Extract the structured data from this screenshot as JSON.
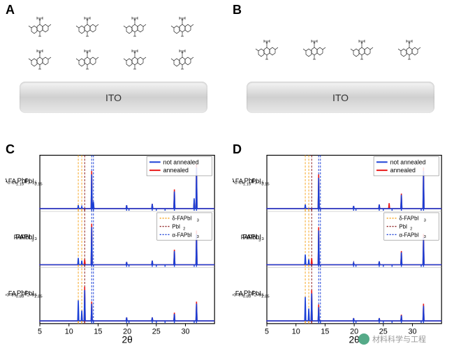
{
  "panels": {
    "A": {
      "label": "A",
      "ito_label": "ITO",
      "mol_rows": 2,
      "mol_cols": 4
    },
    "B": {
      "label": "B",
      "ito_label": "ITO",
      "mol_rows": 1,
      "mol_cols": 4
    },
    "C": {
      "label": "C"
    },
    "D": {
      "label": "D"
    }
  },
  "xrd": {
    "xlabel": "2θ",
    "xlim": [
      5,
      35
    ],
    "xticks": [
      5,
      10,
      15,
      20,
      25,
      30
    ],
    "line_colors": {
      "not_annealed": "#1a3fd6",
      "annealed": "#e81818"
    },
    "line_width": 1.6,
    "ref_lines": {
      "delta": {
        "color": "#f5a623",
        "label": "δ-FAPbI₃",
        "dash": "3,2",
        "positions": [
          11.6,
          12.2
        ]
      },
      "pbi2": {
        "color": "#8b1a1a",
        "label": "PbI₂",
        "dash": "3,2",
        "positions": [
          12.7
        ]
      },
      "alpha": {
        "color": "#1a3fd6",
        "label": "α-FAPbI₃",
        "dash": "3,2",
        "positions": [
          13.9,
          14.2
        ]
      }
    },
    "legend_series": {
      "not_annealed": "not annealed",
      "annealed": "annealed"
    },
    "samples": [
      "FA₁.₁₅PbI₃.₁₅",
      "FAPbI₃",
      "FA₀.₈₅PbI₂.₈₅"
    ],
    "C_data": {
      "FA115": {
        "na": [
          [
            5,
            0
          ],
          [
            11.6,
            5
          ],
          [
            12.2,
            3
          ],
          [
            13.9,
            50
          ],
          [
            14.2,
            10
          ],
          [
            19.9,
            5
          ],
          [
            24.3,
            7
          ],
          [
            28.1,
            25
          ],
          [
            31.5,
            15
          ],
          [
            31.9,
            60
          ]
        ],
        "an": [
          [
            5,
            0
          ],
          [
            13.9,
            55
          ],
          [
            14.2,
            8
          ],
          [
            19.9,
            5
          ],
          [
            24.3,
            7
          ],
          [
            28.1,
            28
          ],
          [
            31.5,
            12
          ],
          [
            31.9,
            65
          ]
        ]
      },
      "FA100": {
        "na": [
          [
            5,
            0
          ],
          [
            11.6,
            10
          ],
          [
            12.2,
            6
          ],
          [
            13.9,
            55
          ],
          [
            19.9,
            4
          ],
          [
            24.3,
            6
          ],
          [
            28.1,
            20
          ],
          [
            31.9,
            45
          ]
        ],
        "an": [
          [
            5,
            0
          ],
          [
            12.7,
            8
          ],
          [
            13.9,
            60
          ],
          [
            19.9,
            4
          ],
          [
            24.3,
            6
          ],
          [
            28.1,
            22
          ],
          [
            31.9,
            50
          ]
        ]
      },
      "FA085": {
        "na": [
          [
            5,
            0
          ],
          [
            11.6,
            30
          ],
          [
            12.2,
            15
          ],
          [
            12.7,
            45
          ],
          [
            13.9,
            25
          ],
          [
            19.9,
            5
          ],
          [
            24.3,
            5
          ],
          [
            28.1,
            10
          ],
          [
            31.9,
            25
          ]
        ],
        "an": [
          [
            5,
            0
          ],
          [
            12.7,
            50
          ],
          [
            13.9,
            28
          ],
          [
            19.9,
            5
          ],
          [
            24.3,
            5
          ],
          [
            28.1,
            12
          ],
          [
            31.9,
            28
          ]
        ]
      }
    },
    "D_data": {
      "FA115": {
        "na": [
          [
            5,
            0
          ],
          [
            11.6,
            6
          ],
          [
            13.9,
            45
          ],
          [
            19.9,
            4
          ],
          [
            24.3,
            6
          ],
          [
            28.1,
            20
          ],
          [
            31.9,
            55
          ]
        ],
        "an": [
          [
            5,
            0
          ],
          [
            13.9,
            50
          ],
          [
            19.9,
            4
          ],
          [
            24.3,
            6
          ],
          [
            26.0,
            8
          ],
          [
            28.1,
            22
          ],
          [
            31.9,
            60
          ]
        ]
      },
      "FA100": {
        "na": [
          [
            5,
            0
          ],
          [
            11.6,
            15
          ],
          [
            12.2,
            8
          ],
          [
            13.9,
            50
          ],
          [
            19.9,
            3
          ],
          [
            24.3,
            5
          ],
          [
            28.1,
            18
          ],
          [
            31.9,
            40
          ]
        ],
        "an": [
          [
            5,
            0
          ],
          [
            12.7,
            10
          ],
          [
            13.9,
            55
          ],
          [
            19.9,
            3
          ],
          [
            24.3,
            5
          ],
          [
            28.1,
            20
          ],
          [
            31.9,
            45
          ]
        ]
      },
      "FA085": {
        "na": [
          [
            5,
            0
          ],
          [
            11.6,
            35
          ],
          [
            12.2,
            18
          ],
          [
            12.7,
            40
          ],
          [
            13.9,
            20
          ],
          [
            19.9,
            4
          ],
          [
            24.3,
            4
          ],
          [
            28.1,
            8
          ],
          [
            31.9,
            22
          ]
        ],
        "an": [
          [
            5,
            0
          ],
          [
            12.7,
            45
          ],
          [
            13.9,
            24
          ],
          [
            19.9,
            4
          ],
          [
            24.3,
            4
          ],
          [
            28.1,
            9
          ],
          [
            31.9,
            25
          ]
        ]
      }
    },
    "tick_markers": [
      11.6,
      12.2,
      12.7,
      13.9,
      14.2,
      19.9,
      20.3,
      24.3,
      25.0,
      26.5,
      28.1,
      31.5,
      31.9
    ]
  },
  "watermark": "材料科学与工程",
  "bg_color": "#ffffff",
  "axis_color": "#000000",
  "axis_fontsize": 14,
  "label_fontsize": 11
}
